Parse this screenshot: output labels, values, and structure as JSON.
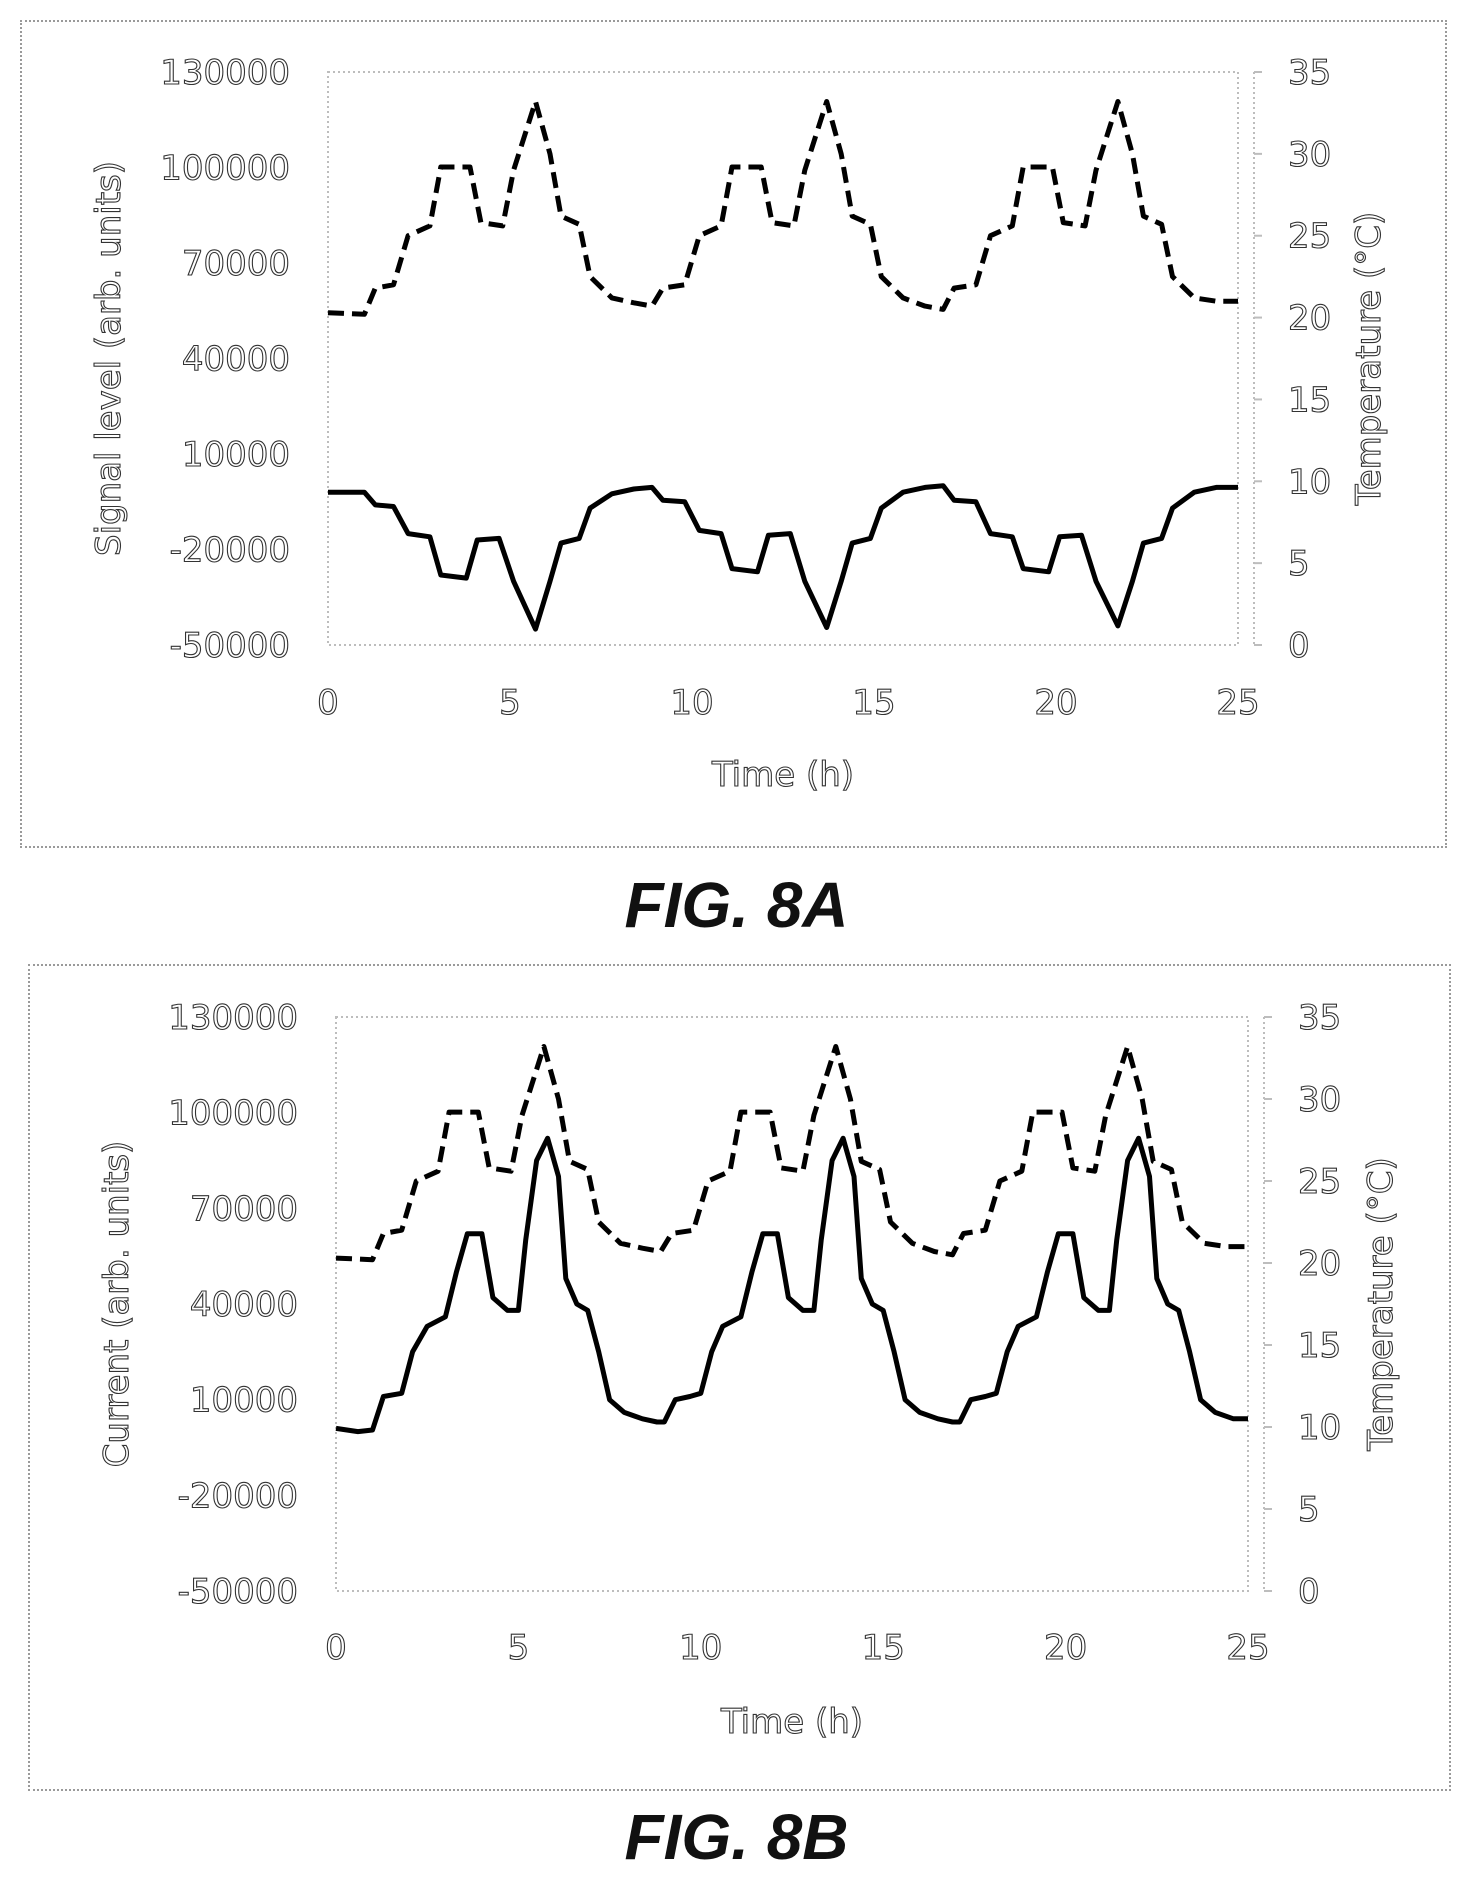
{
  "figures": [
    {
      "label": "FIG. 8A"
    },
    {
      "label": "FIG. 8B"
    }
  ],
  "chart_data": [
    {
      "type": "line",
      "xlabel": "Time (h)",
      "ylabel": "Signal level (arb. units)",
      "y2label": "Temperature (°C)",
      "xlim": [
        0,
        25
      ],
      "ylim": [
        -50000,
        130000
      ],
      "y2lim": [
        0,
        35
      ],
      "xticks": [
        "0",
        "5",
        "10",
        "15",
        "20",
        "25"
      ],
      "yticks": [
        "-50000",
        "-20000",
        "10000",
        "40000",
        "70000",
        "100000",
        "130000"
      ],
      "y2ticks": [
        "0",
        "5",
        "10",
        "15",
        "20",
        "25",
        "30",
        "35"
      ],
      "grid": false,
      "legend": "none",
      "series": [
        {
          "axis": "right",
          "style": "dashed",
          "points": [
            [
              0,
              20.3
            ],
            [
              1,
              20.2
            ],
            [
              1.3,
              21.8
            ],
            [
              1.8,
              22
            ],
            [
              2.2,
              25
            ],
            [
              2.8,
              25.6
            ],
            [
              3.1,
              29.2
            ],
            [
              3.9,
              29.2
            ],
            [
              4.2,
              25.8
            ],
            [
              4.8,
              25.6
            ],
            [
              5.1,
              29
            ],
            [
              5.7,
              33.2
            ],
            [
              6.1,
              30
            ],
            [
              6.4,
              26.2
            ],
            [
              6.9,
              25.7
            ],
            [
              7.2,
              22.5
            ],
            [
              7.8,
              21.2
            ],
            [
              8.4,
              20.9
            ],
            [
              8.9,
              20.7
            ],
            [
              9.2,
              21.8
            ],
            [
              9.8,
              22
            ],
            [
              10.2,
              25
            ],
            [
              10.8,
              25.6
            ],
            [
              11.1,
              29.2
            ],
            [
              11.9,
              29.2
            ],
            [
              12.2,
              25.8
            ],
            [
              12.8,
              25.6
            ],
            [
              13.1,
              29
            ],
            [
              13.7,
              33.2
            ],
            [
              14.1,
              30
            ],
            [
              14.4,
              26.2
            ],
            [
              14.9,
              25.7
            ],
            [
              15.2,
              22.5
            ],
            [
              15.8,
              21.2
            ],
            [
              16.4,
              20.7
            ],
            [
              16.9,
              20.5
            ],
            [
              17.2,
              21.8
            ],
            [
              17.8,
              22
            ],
            [
              18.2,
              25
            ],
            [
              18.8,
              25.6
            ],
            [
              19.1,
              29.2
            ],
            [
              19.9,
              29.2
            ],
            [
              20.2,
              25.8
            ],
            [
              20.8,
              25.6
            ],
            [
              21.1,
              29
            ],
            [
              21.7,
              33.2
            ],
            [
              22.1,
              30
            ],
            [
              22.4,
              26.2
            ],
            [
              22.9,
              25.7
            ],
            [
              23.2,
              22.5
            ],
            [
              23.8,
              21.2
            ],
            [
              24.4,
              21
            ],
            [
              25,
              21
            ]
          ]
        },
        {
          "axis": "left",
          "style": "solid",
          "points": [
            [
              0,
              -2000
            ],
            [
              1,
              -2000
            ],
            [
              1.3,
              -6000
            ],
            [
              1.8,
              -6500
            ],
            [
              2.2,
              -15000
            ],
            [
              2.8,
              -16000
            ],
            [
              3.1,
              -28000
            ],
            [
              3.8,
              -29000
            ],
            [
              4.1,
              -17000
            ],
            [
              4.7,
              -16500
            ],
            [
              5.1,
              -30000
            ],
            [
              5.7,
              -45000
            ],
            [
              6.1,
              -30000
            ],
            [
              6.4,
              -18000
            ],
            [
              6.9,
              -16500
            ],
            [
              7.2,
              -7000
            ],
            [
              7.8,
              -2500
            ],
            [
              8.4,
              -1000
            ],
            [
              8.9,
              -500
            ],
            [
              9.2,
              -4500
            ],
            [
              9.8,
              -5000
            ],
            [
              10.2,
              -14000
            ],
            [
              10.8,
              -15000
            ],
            [
              11.1,
              -26000
            ],
            [
              11.8,
              -27000
            ],
            [
              12.1,
              -15500
            ],
            [
              12.7,
              -15000
            ],
            [
              13.1,
              -30000
            ],
            [
              13.7,
              -44500
            ],
            [
              14.1,
              -30000
            ],
            [
              14.4,
              -18000
            ],
            [
              14.9,
              -16500
            ],
            [
              15.2,
              -7000
            ],
            [
              15.8,
              -2000
            ],
            [
              16.4,
              -500
            ],
            [
              16.9,
              0
            ],
            [
              17.2,
              -4500
            ],
            [
              17.8,
              -5000
            ],
            [
              18.2,
              -15000
            ],
            [
              18.8,
              -16000
            ],
            [
              19.1,
              -26000
            ],
            [
              19.8,
              -27000
            ],
            [
              20.1,
              -16000
            ],
            [
              20.7,
              -15500
            ],
            [
              21.1,
              -30000
            ],
            [
              21.7,
              -44000
            ],
            [
              22.1,
              -30000
            ],
            [
              22.4,
              -18000
            ],
            [
              22.9,
              -16500
            ],
            [
              23.2,
              -7000
            ],
            [
              23.8,
              -2000
            ],
            [
              24.4,
              -500
            ],
            [
              25,
              -500
            ]
          ]
        }
      ]
    },
    {
      "type": "line",
      "xlabel": "Time (h)",
      "ylabel": "Current (arb. units)",
      "y2label": "Temperature (°C)",
      "xlim": [
        0,
        25
      ],
      "ylim": [
        -50000,
        130000
      ],
      "y2lim": [
        0,
        35
      ],
      "xticks": [
        "0",
        "5",
        "10",
        "15",
        "20",
        "25"
      ],
      "yticks": [
        "-50000",
        "-20000",
        "10000",
        "40000",
        "70000",
        "100000",
        "130000"
      ],
      "y2ticks": [
        "0",
        "5",
        "10",
        "15",
        "20",
        "25",
        "30",
        "35"
      ],
      "grid": false,
      "legend": "none",
      "series": [
        {
          "axis": "right",
          "style": "dashed",
          "points": [
            [
              0,
              20.3
            ],
            [
              1,
              20.2
            ],
            [
              1.3,
              21.8
            ],
            [
              1.8,
              22
            ],
            [
              2.2,
              25
            ],
            [
              2.8,
              25.6
            ],
            [
              3.1,
              29.2
            ],
            [
              3.9,
              29.2
            ],
            [
              4.2,
              25.8
            ],
            [
              4.8,
              25.6
            ],
            [
              5.1,
              29
            ],
            [
              5.7,
              33.2
            ],
            [
              6.1,
              30
            ],
            [
              6.4,
              26.2
            ],
            [
              6.9,
              25.7
            ],
            [
              7.2,
              22.5
            ],
            [
              7.8,
              21.2
            ],
            [
              8.4,
              20.9
            ],
            [
              8.9,
              20.7
            ],
            [
              9.2,
              21.8
            ],
            [
              9.8,
              22
            ],
            [
              10.2,
              25
            ],
            [
              10.8,
              25.6
            ],
            [
              11.1,
              29.2
            ],
            [
              11.9,
              29.2
            ],
            [
              12.2,
              25.8
            ],
            [
              12.8,
              25.6
            ],
            [
              13.1,
              29
            ],
            [
              13.7,
              33.2
            ],
            [
              14.1,
              30
            ],
            [
              14.4,
              26.2
            ],
            [
              14.9,
              25.7
            ],
            [
              15.2,
              22.5
            ],
            [
              15.8,
              21.2
            ],
            [
              16.4,
              20.7
            ],
            [
              16.9,
              20.5
            ],
            [
              17.2,
              21.8
            ],
            [
              17.8,
              22
            ],
            [
              18.2,
              25
            ],
            [
              18.8,
              25.6
            ],
            [
              19.1,
              29.2
            ],
            [
              19.9,
              29.2
            ],
            [
              20.2,
              25.8
            ],
            [
              20.8,
              25.6
            ],
            [
              21.1,
              29
            ],
            [
              21.7,
              33.2
            ],
            [
              22.1,
              30
            ],
            [
              22.4,
              26.2
            ],
            [
              22.9,
              25.7
            ],
            [
              23.2,
              22.5
            ],
            [
              23.8,
              21.2
            ],
            [
              24.4,
              21
            ],
            [
              25,
              21
            ]
          ]
        },
        {
          "axis": "left",
          "style": "solid",
          "points": [
            [
              0,
              1000
            ],
            [
              0.6,
              0
            ],
            [
              1,
              500
            ],
            [
              1.3,
              11000
            ],
            [
              1.8,
              12000
            ],
            [
              2.1,
              25000
            ],
            [
              2.5,
              33000
            ],
            [
              3,
              36000
            ],
            [
              3.3,
              50000
            ],
            [
              3.6,
              62000
            ],
            [
              4,
              62000
            ],
            [
              4.3,
              42000
            ],
            [
              4.7,
              38000
            ],
            [
              5,
              38000
            ],
            [
              5.2,
              60000
            ],
            [
              5.5,
              85000
            ],
            [
              5.8,
              92000
            ],
            [
              6.1,
              80000
            ],
            [
              6.3,
              48000
            ],
            [
              6.6,
              40000
            ],
            [
              6.9,
              38000
            ],
            [
              7.2,
              25000
            ],
            [
              7.5,
              10000
            ],
            [
              7.9,
              6000
            ],
            [
              8.4,
              4000
            ],
            [
              8.8,
              3000
            ],
            [
              9,
              3000
            ],
            [
              9.3,
              10000
            ],
            [
              9.7,
              11000
            ],
            [
              10,
              12000
            ],
            [
              10.3,
              25000
            ],
            [
              10.6,
              33000
            ],
            [
              11.1,
              36000
            ],
            [
              11.4,
              50000
            ],
            [
              11.7,
              62000
            ],
            [
              12.1,
              62000
            ],
            [
              12.4,
              42000
            ],
            [
              12.8,
              38000
            ],
            [
              13.1,
              38000
            ],
            [
              13.3,
              60000
            ],
            [
              13.6,
              85000
            ],
            [
              13.9,
              92000
            ],
            [
              14.2,
              80000
            ],
            [
              14.4,
              48000
            ],
            [
              14.7,
              40000
            ],
            [
              15,
              38000
            ],
            [
              15.3,
              25000
            ],
            [
              15.6,
              10000
            ],
            [
              16,
              6000
            ],
            [
              16.5,
              4000
            ],
            [
              16.9,
              3000
            ],
            [
              17.1,
              3000
            ],
            [
              17.4,
              10000
            ],
            [
              17.8,
              11000
            ],
            [
              18.1,
              12000
            ],
            [
              18.4,
              25000
            ],
            [
              18.7,
              33000
            ],
            [
              19.2,
              36000
            ],
            [
              19.5,
              50000
            ],
            [
              19.8,
              62000
            ],
            [
              20.2,
              62000
            ],
            [
              20.5,
              42000
            ],
            [
              20.9,
              38000
            ],
            [
              21.2,
              38000
            ],
            [
              21.4,
              60000
            ],
            [
              21.7,
              85000
            ],
            [
              22,
              92000
            ],
            [
              22.3,
              80000
            ],
            [
              22.5,
              48000
            ],
            [
              22.8,
              40000
            ],
            [
              23.1,
              38000
            ],
            [
              23.4,
              25000
            ],
            [
              23.7,
              10000
            ],
            [
              24.1,
              6000
            ],
            [
              24.6,
              4000
            ],
            [
              25,
              4000
            ]
          ]
        }
      ]
    }
  ]
}
